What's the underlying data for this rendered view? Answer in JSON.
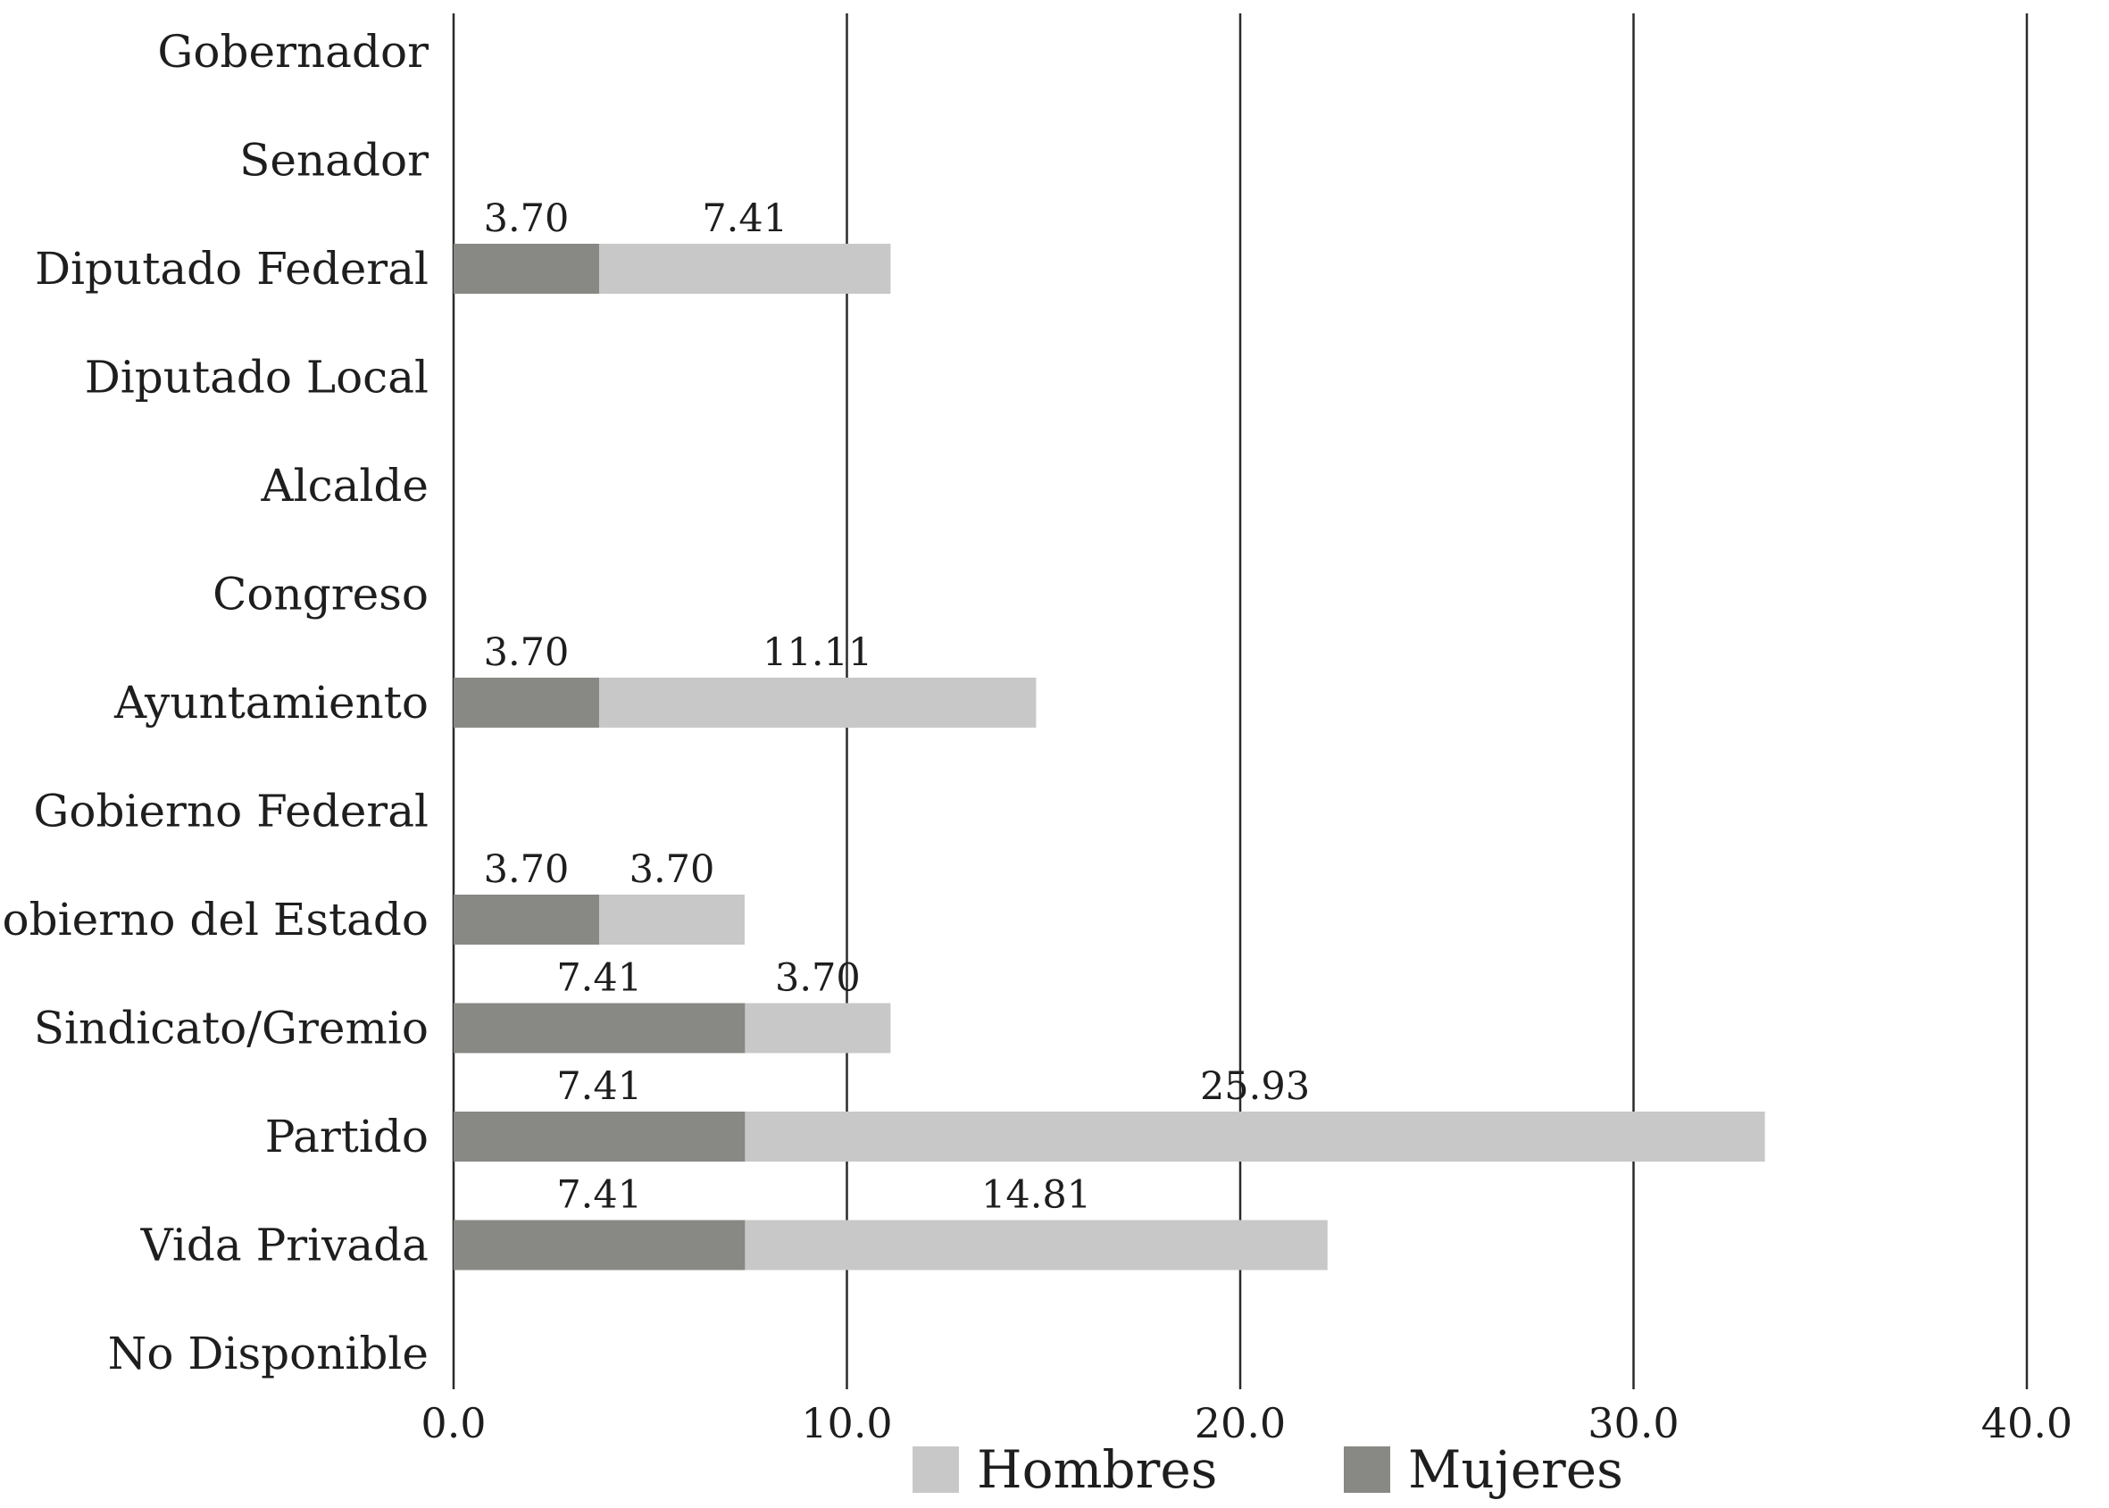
{
  "chart_data": {
    "type": "bar",
    "orientation": "horizontal",
    "stacked": true,
    "categories": [
      "Gobernador",
      "Senador",
      "Diputado Federal",
      "Diputado Local",
      "Alcalde",
      "Congreso",
      "Ayuntamiento",
      "Gobierno Federal",
      "Gobierno del Estado",
      "Sindicato/Gremio",
      "Partido",
      "Vida Privada",
      "No Disponible"
    ],
    "series": [
      {
        "name": "Mujeres",
        "color": "#888884",
        "values": [
          0,
          0,
          3.7,
          0,
          0,
          0,
          3.7,
          0,
          3.7,
          7.41,
          7.41,
          7.41,
          0
        ],
        "labels": [
          "",
          "",
          "3.70",
          "",
          "",
          "",
          "3.70",
          "",
          "3.70",
          "7.41",
          "7.41",
          "7.41",
          ""
        ]
      },
      {
        "name": "Hombres",
        "color": "#c8c8c8",
        "values": [
          0,
          0,
          7.41,
          0,
          0,
          0,
          11.11,
          0,
          3.7,
          3.7,
          25.93,
          14.81,
          0
        ],
        "labels": [
          "",
          "",
          "7.41",
          "",
          "",
          "",
          "11.11",
          "",
          "3.70",
          "3.70",
          "25.93",
          "14.81",
          ""
        ]
      }
    ],
    "xlim": [
      0,
      40
    ],
    "xticks": [
      "0.0",
      "10.0",
      "20.0",
      "30.0",
      "40.0"
    ],
    "grid": true,
    "legend": {
      "placement": "bottom",
      "items": [
        {
          "name": "Hombres",
          "color": "#c8c8c8"
        },
        {
          "name": "Mujeres",
          "color": "#888884"
        }
      ]
    }
  }
}
